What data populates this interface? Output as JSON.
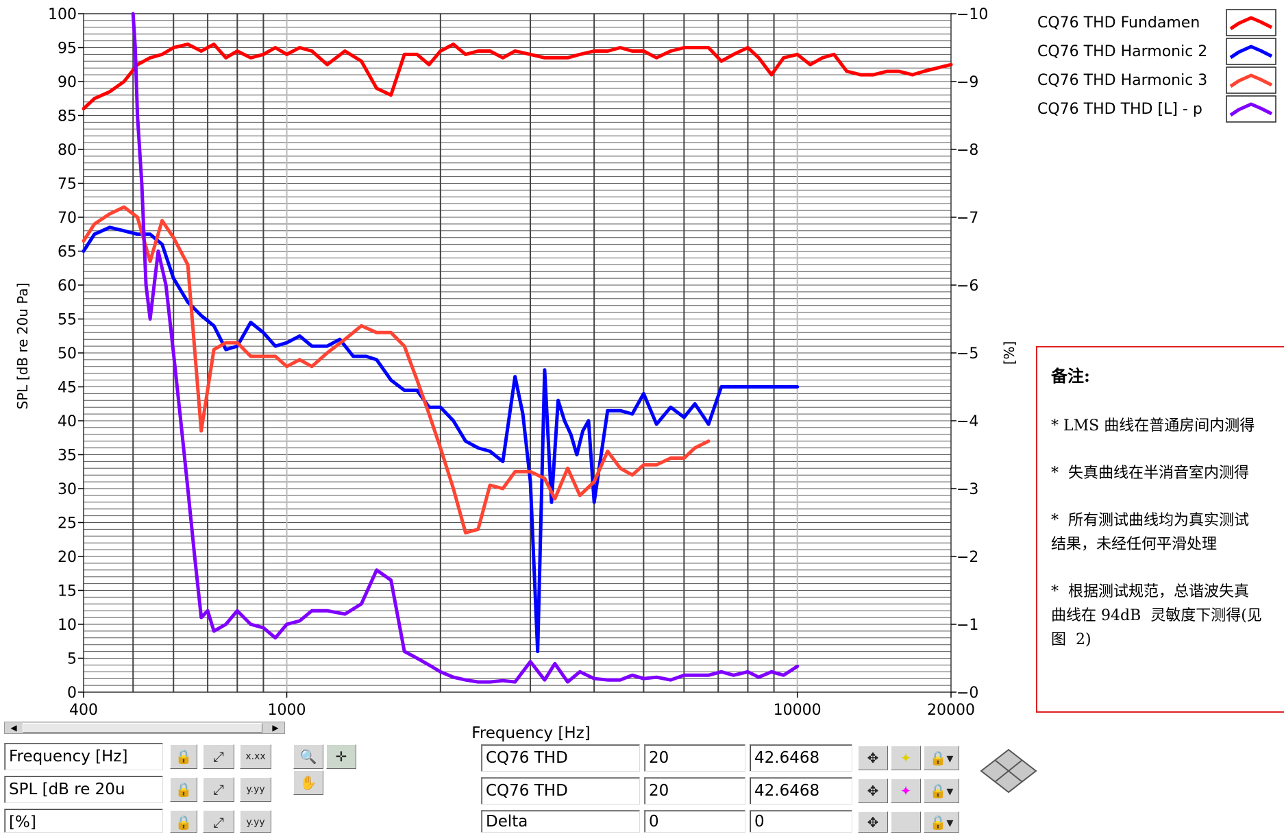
{
  "chart_data": {
    "type": "line",
    "xscale": "log",
    "xlim": [
      400,
      20000
    ],
    "ylim": [
      0,
      100
    ],
    "y2lim": [
      0,
      10
    ],
    "xlabel": "Frequency [Hz]",
    "ylabel": "SPL [dB re 20u Pa]",
    "y2label": "[%]",
    "x_ticks": [
      400,
      1000,
      10000,
      20000
    ],
    "y_ticks": [
      0,
      5,
      10,
      15,
      20,
      25,
      30,
      35,
      40,
      45,
      50,
      55,
      60,
      65,
      70,
      75,
      80,
      85,
      90,
      95,
      100
    ],
    "y2_ticks": [
      0,
      1,
      2,
      3,
      4,
      5,
      6,
      7,
      8,
      9,
      10
    ],
    "y2_tick_labels": [
      "−0",
      "−1",
      "−2",
      "−3",
      "−4",
      "−5",
      "−6",
      "−7",
      "−8",
      "−9",
      "−10"
    ],
    "grid": true,
    "legend_position": "top-right",
    "series": [
      {
        "name": "CQ76 THD Fundamen",
        "color": "#ff0000",
        "axis": "left",
        "x": [
          400,
          420,
          450,
          480,
          510,
          540,
          570,
          600,
          640,
          680,
          720,
          760,
          800,
          850,
          900,
          950,
          1000,
          1060,
          1120,
          1200,
          1300,
          1400,
          1500,
          1600,
          1700,
          1800,
          1900,
          2000,
          2120,
          2240,
          2370,
          2500,
          2650,
          2800,
          3000,
          3200,
          3350,
          3550,
          3750,
          4000,
          4250,
          4500,
          4750,
          5000,
          5300,
          5650,
          6000,
          6300,
          6700,
          7100,
          7500,
          8000,
          8400,
          8900,
          9400,
          10000,
          10600,
          11200,
          11800,
          12500,
          13300,
          14100,
          15000,
          15800,
          16800,
          17700,
          18800,
          20000
        ],
        "y": [
          86,
          87.5,
          88.5,
          90,
          92.5,
          93.5,
          94,
          95,
          95.5,
          94.5,
          95.5,
          93.5,
          94.5,
          93.5,
          94,
          95,
          94,
          95,
          94.5,
          92.5,
          94.5,
          93,
          89,
          88,
          94,
          94,
          92.5,
          94.5,
          95.5,
          94,
          94.5,
          94.5,
          93.5,
          94.5,
          94,
          93.5,
          93.5,
          93.5,
          94,
          94.5,
          94.5,
          95,
          94.5,
          94.5,
          93.5,
          94.5,
          95,
          95,
          95,
          93,
          94,
          95,
          93.5,
          91,
          93.5,
          94,
          92.5,
          93.5,
          94,
          91.5,
          91,
          91,
          91.5,
          91.5,
          91,
          91.5,
          92,
          92.5
        ]
      },
      {
        "name": "CQ76 THD Harmonic 2",
        "color": "#0000ff",
        "axis": "left",
        "x": [
          400,
          420,
          450,
          480,
          510,
          540,
          570,
          600,
          640,
          680,
          720,
          760,
          800,
          850,
          900,
          950,
          1000,
          1060,
          1120,
          1200,
          1270,
          1350,
          1430,
          1500,
          1600,
          1700,
          1800,
          1900,
          2000,
          2120,
          2240,
          2370,
          2500,
          2650,
          2800,
          2900,
          3000,
          3100,
          3200,
          3300,
          3400,
          3500,
          3600,
          3700,
          3800,
          3900,
          4000,
          4250,
          4500,
          4750,
          5000,
          5300,
          5650,
          6000,
          6300,
          6700,
          7100,
          7500,
          8000,
          8400,
          8900,
          9400,
          10000
        ],
        "y": [
          65,
          67.5,
          68.5,
          68,
          67.5,
          67.5,
          66,
          61,
          57.5,
          55.5,
          54,
          50.5,
          51,
          54.5,
          53,
          51,
          51.5,
          52.5,
          51,
          51,
          52,
          49.5,
          49.5,
          49,
          46,
          44.5,
          44.5,
          42,
          42,
          40,
          37,
          36,
          35.5,
          34,
          46.5,
          41,
          31,
          6,
          47.5,
          28,
          43,
          40,
          38,
          35,
          38.5,
          40,
          28,
          41.5,
          41.5,
          41,
          44,
          39.5,
          42,
          40.5,
          42.5,
          39.5,
          45,
          45,
          45,
          45,
          45,
          45,
          45
        ]
      },
      {
        "name": "CQ76 THD Harmonic 3",
        "color": "#ff4433",
        "axis": "left",
        "x": [
          400,
          420,
          450,
          480,
          510,
          540,
          570,
          600,
          640,
          680,
          720,
          760,
          800,
          850,
          900,
          950,
          1000,
          1060,
          1120,
          1200,
          1300,
          1400,
          1500,
          1600,
          1700,
          1800,
          1900,
          2000,
          2120,
          2240,
          2370,
          2500,
          2650,
          2800,
          3000,
          3200,
          3350,
          3550,
          3750,
          4000,
          4250,
          4500,
          4750,
          5000,
          5300,
          5650,
          6000,
          6300,
          6700
        ],
        "y": [
          66.5,
          69,
          70.5,
          71.5,
          70,
          63.5,
          69.5,
          67,
          63,
          38.5,
          50.5,
          51.5,
          51.5,
          49.5,
          49.5,
          49.5,
          48,
          49,
          48,
          50,
          52,
          54,
          53,
          53,
          51,
          46,
          41,
          36,
          30,
          23.5,
          24,
          30.5,
          30,
          32.5,
          32.5,
          31.5,
          28.5,
          33,
          29,
          31,
          35.5,
          33,
          32,
          33.5,
          33.5,
          34.5,
          34.5,
          36,
          37
        ]
      },
      {
        "name": "CQ76 THD THD [L] - p",
        "color": "#8000ff",
        "axis": "right",
        "x": [
          500,
          505,
          510,
          520,
          530,
          540,
          560,
          580,
          600,
          620,
          640,
          660,
          680,
          700,
          720,
          760,
          800,
          850,
          900,
          950,
          1000,
          1060,
          1120,
          1200,
          1300,
          1400,
          1500,
          1600,
          1700,
          1800,
          1900,
          2000,
          2120,
          2240,
          2370,
          2500,
          2650,
          2800,
          3000,
          3200,
          3350,
          3550,
          3750,
          4000,
          4250,
          4500,
          4750,
          5000,
          5300,
          5650,
          6000,
          6300,
          6700,
          7100,
          7500,
          8000,
          8400,
          8900,
          9400,
          10000
        ],
        "y": [
          10,
          9.5,
          8.5,
          7.5,
          6,
          5.5,
          6.5,
          6,
          5,
          4,
          3,
          2,
          1.1,
          1.2,
          0.9,
          1,
          1.2,
          1,
          0.95,
          0.8,
          1,
          1.05,
          1.2,
          1.2,
          1.15,
          1.3,
          1.8,
          1.65,
          0.6,
          0.5,
          0.4,
          0.3,
          0.22,
          0.18,
          0.15,
          0.15,
          0.17,
          0.15,
          0.45,
          0.18,
          0.42,
          0.15,
          0.3,
          0.2,
          0.18,
          0.18,
          0.25,
          0.2,
          0.22,
          0.18,
          0.25,
          0.25,
          0.25,
          0.3,
          0.25,
          0.3,
          0.22,
          0.3,
          0.25,
          0.38
        ]
      }
    ]
  },
  "cursor_panel": {
    "x_axis_name": "Frequency [Hz]",
    "y_axis_name": "SPL [dB re 20u",
    "y2_axis_name": "[%]",
    "x_format": "x.xx",
    "y_format": "y.yy",
    "y2_format": "y.yy",
    "zoom_icon": "zoom-icon",
    "crosshair_icon": "crosshair-icon",
    "pan_icon": "pan-hand-icon",
    "lock_icon": "lock-icon",
    "cursors": [
      {
        "name": "CQ76 THD",
        "x": "20",
        "y": "42.6468",
        "color": "#ffff00"
      },
      {
        "name": "CQ76 THD",
        "x": "20",
        "y": "42.6468",
        "color": "#ff00ff"
      },
      {
        "name": "Delta",
        "x": "0",
        "y": "0",
        "color": ""
      }
    ]
  },
  "notes": {
    "title": "备注:",
    "lines": [
      "* LMS 曲线在普通房间内测得",
      "*  失真曲线在半消音室内测得",
      "*  所有测试曲线均为真实测试\n结果，未经任何平滑处理",
      "*  根据测试规范，总谐波失真\n曲线在 94dB  灵敏度下测得(见\n图  2)"
    ]
  }
}
